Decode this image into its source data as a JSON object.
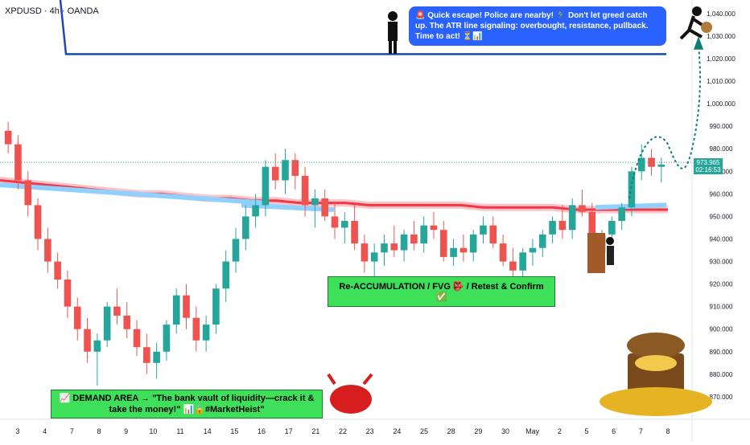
{
  "header": {
    "symbol": "XPDUSD · 4h · OANDA"
  },
  "callouts": {
    "top": "🚨 Quick escape! Police are nearby! 🏃‍♂️ Don't let greed catch up. The ATR line signaling: overbought, resistance, pullback. Time to act! ⏳📊",
    "mid": "Re-ACCUMULATION / FVG 👺 / Retest & Confirm ✅",
    "bottom": "📈 DEMAND AREA → \"The bank vault of liquidity—crack it & take the money!\" 📊🔒#MarketHeist\""
  },
  "price_tag": {
    "price": "973.965",
    "timer": "02:16:53"
  },
  "colors": {
    "up": "#26a69a",
    "down": "#ef5350",
    "ma_red": "#f23645",
    "ma_blue": "#2196f3",
    "atr_line": "#1e48b8",
    "path": "#0f7f74"
  },
  "icons": [
    "police-officer-icon",
    "thief-icon",
    "bull-icon",
    "treasure-chest-icon",
    "door-thief-icon"
  ],
  "chart_data": {
    "type": "candlestick",
    "ylim": [
      860,
      1046
    ],
    "y_ticks": [
      870,
      880,
      890,
      900,
      910,
      920,
      930,
      940,
      950,
      960,
      970,
      980,
      990,
      1000,
      1010,
      1020,
      1030,
      1040
    ],
    "y_tick_labels": [
      "870.000",
      "880.000",
      "890.000",
      "900.000",
      "910.000",
      "920.000",
      "930.000",
      "940.000",
      "950.000",
      "960.000",
      "970.000",
      "980.000",
      "990.000",
      "1,000.000",
      "1,010.000",
      "1,020.000",
      "1,030.000",
      "1,040.000"
    ],
    "x_tick_labels": [
      "3",
      "4",
      "7",
      "8",
      "9",
      "10",
      "11",
      "14",
      "15",
      "16",
      "17",
      "21",
      "22",
      "23",
      "24",
      "25",
      "28",
      "29",
      "30",
      "May",
      "2",
      "5",
      "6",
      "7",
      "8"
    ],
    "ohlc": [
      [
        988,
        992,
        978,
        982
      ],
      [
        982,
        986,
        962,
        966
      ],
      [
        966,
        970,
        950,
        955
      ],
      [
        955,
        958,
        935,
        940
      ],
      [
        940,
        945,
        925,
        930
      ],
      [
        930,
        934,
        918,
        922
      ],
      [
        922,
        926,
        905,
        910
      ],
      [
        910,
        914,
        895,
        900
      ],
      [
        900,
        905,
        885,
        890
      ],
      [
        890,
        898,
        875,
        895
      ],
      [
        895,
        912,
        892,
        910
      ],
      [
        910,
        918,
        902,
        906
      ],
      [
        906,
        912,
        896,
        900
      ],
      [
        900,
        904,
        888,
        892
      ],
      [
        892,
        898,
        880,
        885
      ],
      [
        885,
        894,
        878,
        890
      ],
      [
        890,
        904,
        886,
        902
      ],
      [
        902,
        918,
        898,
        915
      ],
      [
        915,
        920,
        900,
        905
      ],
      [
        905,
        910,
        890,
        895
      ],
      [
        895,
        906,
        890,
        902
      ],
      [
        902,
        920,
        898,
        918
      ],
      [
        918,
        935,
        912,
        930
      ],
      [
        930,
        945,
        925,
        940
      ],
      [
        940,
        955,
        935,
        950
      ],
      [
        950,
        960,
        945,
        955
      ],
      [
        955,
        975,
        950,
        972
      ],
      [
        972,
        978,
        962,
        966
      ],
      [
        966,
        980,
        960,
        975
      ],
      [
        975,
        978,
        962,
        968
      ],
      [
        968,
        972,
        950,
        955
      ],
      [
        955,
        962,
        945,
        958
      ],
      [
        958,
        962,
        948,
        950
      ],
      [
        950,
        956,
        940,
        945
      ],
      [
        945,
        952,
        938,
        948
      ],
      [
        948,
        955,
        935,
        938
      ],
      [
        938,
        942,
        925,
        930
      ],
      [
        930,
        938,
        922,
        934
      ],
      [
        934,
        942,
        928,
        938
      ],
      [
        938,
        946,
        932,
        935
      ],
      [
        935,
        944,
        930,
        942
      ],
      [
        942,
        948,
        935,
        938
      ],
      [
        938,
        950,
        934,
        946
      ],
      [
        946,
        952,
        940,
        944
      ],
      [
        944,
        948,
        930,
        932
      ],
      [
        932,
        940,
        928,
        936
      ],
      [
        936,
        942,
        930,
        934
      ],
      [
        934,
        944,
        930,
        942
      ],
      [
        942,
        950,
        938,
        946
      ],
      [
        946,
        950,
        936,
        938
      ],
      [
        938,
        942,
        928,
        930
      ],
      [
        930,
        936,
        922,
        926
      ],
      [
        926,
        936,
        922,
        934
      ],
      [
        934,
        940,
        928,
        936
      ],
      [
        936,
        944,
        932,
        942
      ],
      [
        942,
        950,
        938,
        948
      ],
      [
        948,
        955,
        940,
        944
      ],
      [
        944,
        958,
        940,
        955
      ],
      [
        955,
        962,
        950,
        952
      ],
      [
        952,
        956,
        930,
        934
      ],
      [
        934,
        944,
        930,
        942
      ],
      [
        942,
        950,
        938,
        948
      ],
      [
        948,
        956,
        944,
        954
      ],
      [
        954,
        972,
        950,
        970
      ],
      [
        970,
        982,
        966,
        976
      ],
      [
        976,
        980,
        968,
        972
      ],
      [
        972,
        976,
        965,
        973
      ]
    ],
    "ma_level": [
      966,
      965,
      964,
      963,
      962,
      961,
      960,
      960,
      959,
      958,
      958,
      957,
      957,
      956,
      956,
      956,
      955,
      955,
      955,
      955,
      955,
      954,
      954,
      954,
      954,
      953,
      953,
      953,
      953,
      953
    ],
    "blue_band": 957,
    "atr_line_level": 1022,
    "annotation_path": [
      [
        973,
        968
      ],
      [
        978,
        984
      ],
      [
        976,
        970
      ],
      [
        982,
        1020
      ]
    ]
  }
}
